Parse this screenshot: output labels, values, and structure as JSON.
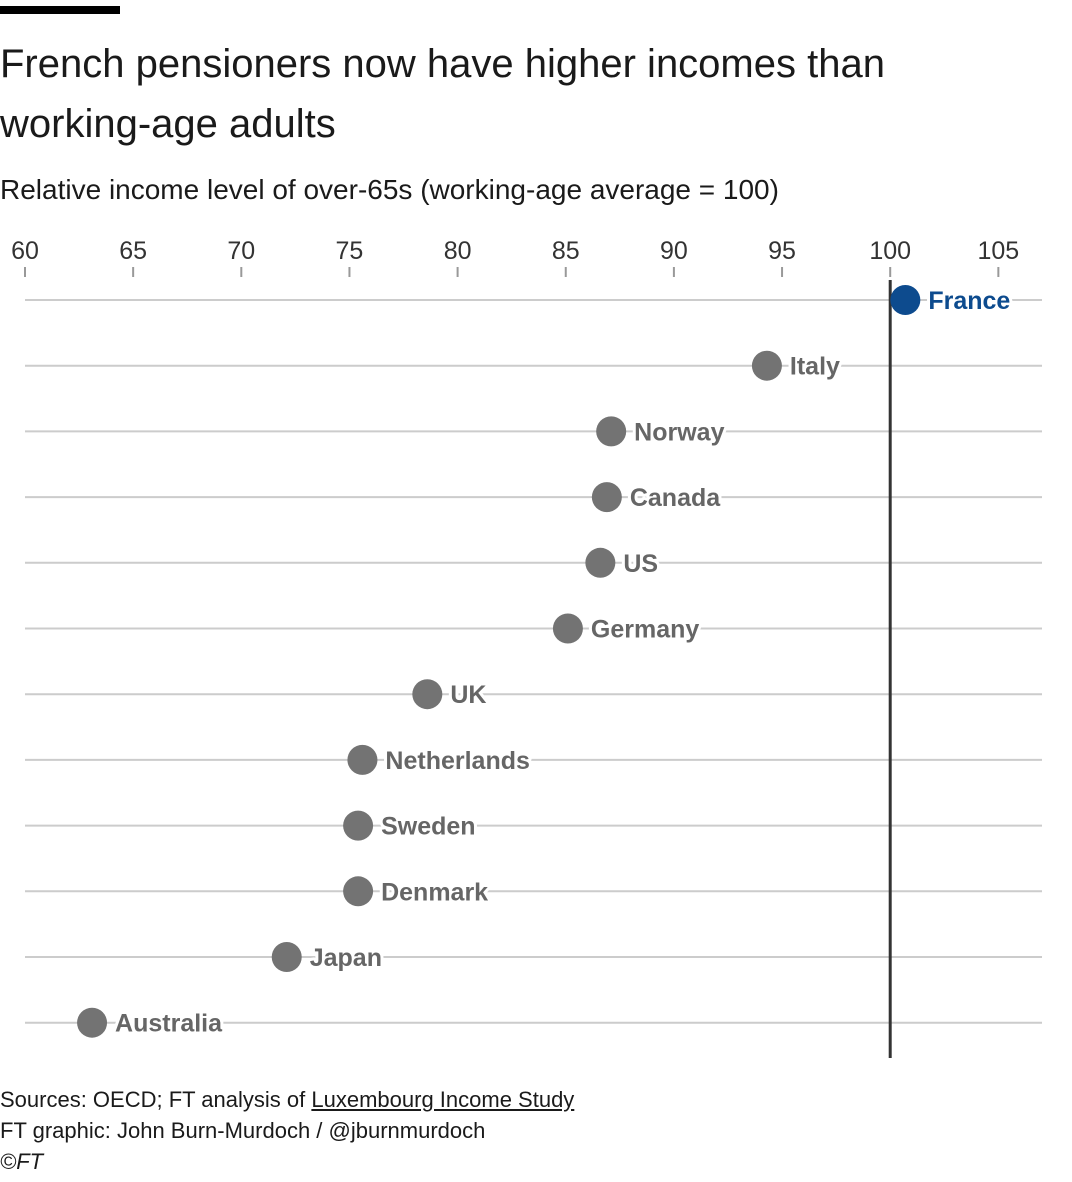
{
  "title": "French pensioners now have higher incomes than working-age adults",
  "subtitle": "Relative income level of over-65s (working-age average = 100)",
  "colors": {
    "highlight": "#0d4b8e",
    "point": "#737373",
    "label": "#666666",
    "gridline": "#cccccc",
    "reference_line": "#333333"
  },
  "chart_data": {
    "type": "scatter",
    "title": "French pensioners now have higher incomes than working-age adults",
    "xlabel": "Relative income level of over-65s (working-age average = 100)",
    "ylabel": "",
    "xlim": [
      60,
      107
    ],
    "xticks": [
      60,
      65,
      70,
      75,
      80,
      85,
      90,
      95,
      100,
      105
    ],
    "reference_value": 100,
    "grid": true,
    "points": [
      {
        "name": "France",
        "value": 100.7,
        "highlight": true
      },
      {
        "name": "Italy",
        "value": 94.3
      },
      {
        "name": "Norway",
        "value": 87.1
      },
      {
        "name": "Canada",
        "value": 86.9
      },
      {
        "name": "US",
        "value": 86.6
      },
      {
        "name": "Germany",
        "value": 85.1
      },
      {
        "name": "UK",
        "value": 78.6
      },
      {
        "name": "Netherlands",
        "value": 75.6
      },
      {
        "name": "Sweden",
        "value": 75.4
      },
      {
        "name": "Denmark",
        "value": 75.4
      },
      {
        "name": "Japan",
        "value": 72.1
      },
      {
        "name": "Australia",
        "value": 63.1
      }
    ]
  },
  "footer": {
    "sources_prefix": "Sources: OECD; FT analysis of ",
    "sources_link": "Luxembourg Income Study",
    "credit": "FT graphic: John Burn-Murdoch / @jburnmurdoch",
    "copyright": "©FT"
  }
}
